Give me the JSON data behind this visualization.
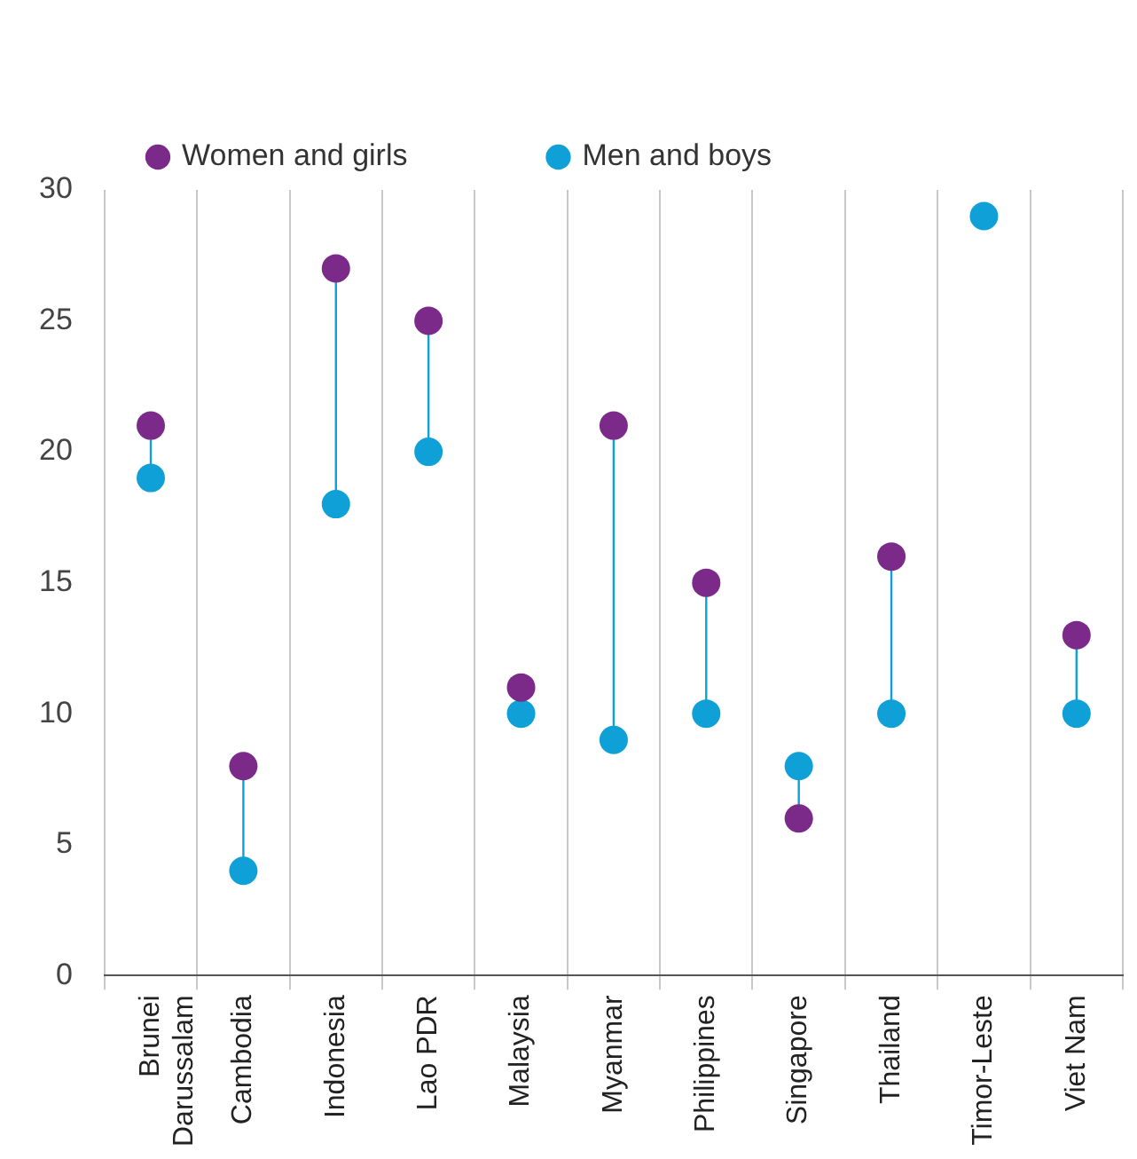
{
  "chart_data": {
    "type": "scatter",
    "categories": [
      "Brunei Darussalam",
      "Cambodia",
      "Indonesia",
      "Lao PDR",
      "Malaysia",
      "Myanmar",
      "Philippines",
      "Singapore",
      "Thailand",
      "Timor-Leste",
      "Viet Nam"
    ],
    "series": [
      {
        "name": "Women and girls",
        "color": "#7b2a8a",
        "values": [
          21,
          8,
          27,
          25,
          11,
          21,
          15,
          6,
          16,
          null,
          13
        ]
      },
      {
        "name": "Men and boys",
        "color": "#0fa0d8",
        "values": [
          19,
          4,
          18,
          20,
          10,
          9,
          10,
          8,
          10,
          29,
          10
        ]
      }
    ],
    "ylim": [
      0,
      30
    ],
    "yticks": [
      0,
      5,
      10,
      15,
      20,
      25,
      30
    ],
    "grid": "x",
    "legend": "top left",
    "marker": "circle"
  }
}
